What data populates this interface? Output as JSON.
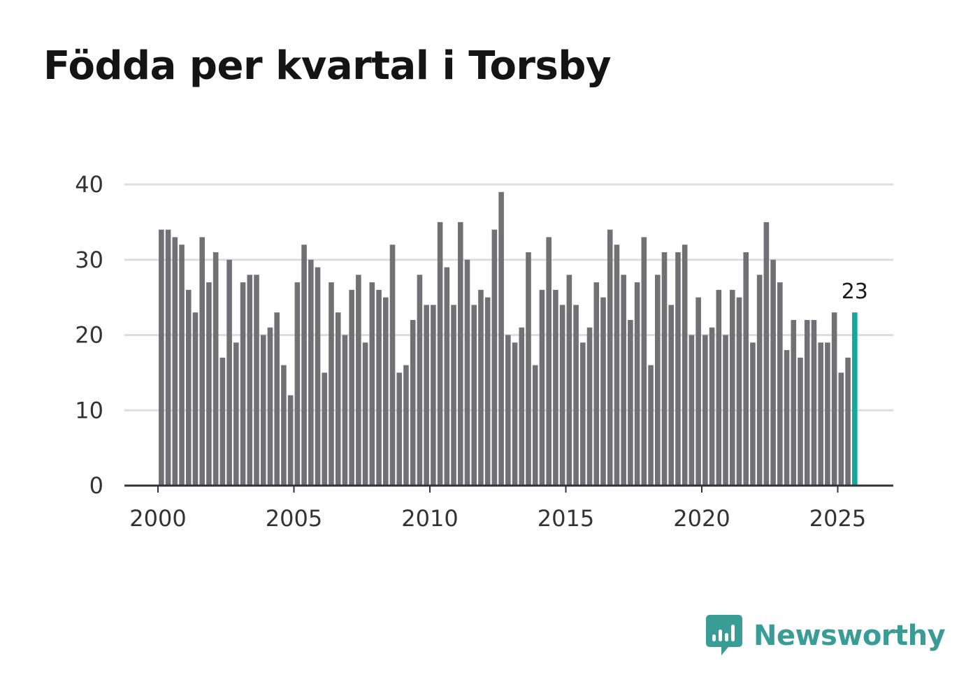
{
  "title": "Födda per kvartal i Torsby",
  "brand": {
    "name": "Newsworthy",
    "color": "#3a9d95",
    "icon": "newsworthy-logo-icon"
  },
  "colors": {
    "bar": "#717075",
    "highlight": "#13a89e",
    "grid": "#dddddd",
    "axis": "#333333"
  },
  "chart_data": {
    "type": "bar",
    "title": "Födda per kvartal i Torsby",
    "xlabel": "",
    "ylabel": "",
    "ylim": [
      0,
      40
    ],
    "xlim": [
      1999.75,
      2027.0
    ],
    "yticks": [
      0,
      10,
      20,
      30,
      40
    ],
    "xticks": [
      2000,
      2005,
      2010,
      2015,
      2020,
      2025
    ],
    "grid": true,
    "start_year": 2000,
    "start_quarter": 1,
    "values": [
      34,
      34,
      33,
      32,
      26,
      23,
      33,
      27,
      31,
      17,
      30,
      19,
      27,
      28,
      28,
      20,
      21,
      23,
      16,
      12,
      27,
      32,
      30,
      29,
      15,
      27,
      23,
      20,
      26,
      28,
      19,
      27,
      26,
      25,
      32,
      15,
      16,
      22,
      28,
      24,
      24,
      35,
      29,
      24,
      35,
      30,
      24,
      26,
      25,
      34,
      39,
      20,
      19,
      21,
      31,
      16,
      26,
      33,
      26,
      24,
      28,
      24,
      19,
      21,
      27,
      25,
      34,
      32,
      28,
      22,
      27,
      33,
      16,
      28,
      31,
      24,
      31,
      32,
      20,
      25,
      20,
      21,
      26,
      20,
      26,
      25,
      31,
      19,
      28,
      35,
      30,
      27,
      18,
      22,
      17,
      22,
      22,
      19,
      19,
      23,
      15,
      17,
      23
    ],
    "highlight_last": true,
    "last_label": "23"
  }
}
